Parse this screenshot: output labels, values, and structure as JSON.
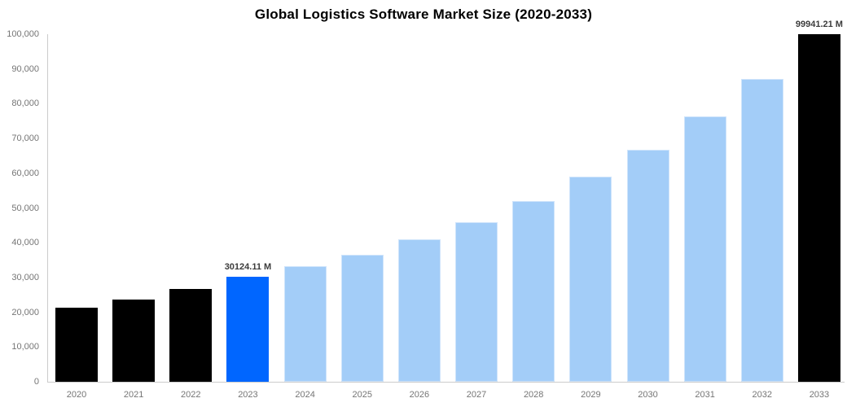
{
  "chart_data": {
    "type": "bar",
    "title": "Global Logistics Software Market Size (2020-2033)",
    "xlabel": "",
    "ylabel": "",
    "unit": "M",
    "categories": [
      "2020",
      "2021",
      "2022",
      "2023",
      "2024",
      "2025",
      "2026",
      "2027",
      "2028",
      "2029",
      "2030",
      "2031",
      "2032",
      "2033"
    ],
    "values": [
      21300,
      23700,
      26800,
      30124.11,
      33300,
      36600,
      41000,
      46000,
      52000,
      58900,
      66800,
      76400,
      87200,
      99941.21
    ],
    "colors": [
      "#000000",
      "#000000",
      "#000000",
      "#0066ff",
      "#a3cdf8",
      "#a3cdf8",
      "#a3cdf8",
      "#a3cdf8",
      "#a3cdf8",
      "#a3cdf8",
      "#a3cdf8",
      "#a3cdf8",
      "#a3cdf8",
      "#000000"
    ],
    "border_colors": [
      null,
      null,
      null,
      null,
      "#cfe4fb",
      "#cfe4fb",
      "#cfe4fb",
      "#cfe4fb",
      "#cfe4fb",
      "#cfe4fb",
      "#cfe4fb",
      "#cfe4fb",
      "#cfe4fb",
      null
    ],
    "roles": [
      "history",
      "history",
      "history",
      "current",
      "forecast",
      "forecast",
      "forecast",
      "forecast",
      "forecast",
      "forecast",
      "forecast",
      "forecast",
      "forecast",
      "projection"
    ],
    "ylim": [
      0,
      100000
    ],
    "ytick_step": 10000,
    "yticks": [
      {
        "value": 0,
        "label": "0"
      },
      {
        "value": 10000,
        "label": "10,000"
      },
      {
        "value": 20000,
        "label": "20,000"
      },
      {
        "value": 30000,
        "label": "30,000"
      },
      {
        "value": 40000,
        "label": "40,000"
      },
      {
        "value": 50000,
        "label": "50,000"
      },
      {
        "value": 60000,
        "label": "60,000"
      },
      {
        "value": 70000,
        "label": "70,000"
      },
      {
        "value": 80000,
        "label": "80,000"
      },
      {
        "value": 90000,
        "label": "90,000"
      },
      {
        "value": 100000,
        "label": "100,000"
      }
    ],
    "annotations": [
      {
        "year": "2023",
        "text": "30124.11 M"
      },
      {
        "year": "2033",
        "text": "99941.21 M"
      }
    ],
    "grid": false,
    "legend": false,
    "accent_colors": {
      "history_bar": "#000000",
      "current_year_bar": "#0066ff",
      "forecast_bar": "#a3cdf8",
      "axis_line": "#cccccc",
      "axis_text": "#757575",
      "label_text": "#3b3b3b"
    }
  }
}
